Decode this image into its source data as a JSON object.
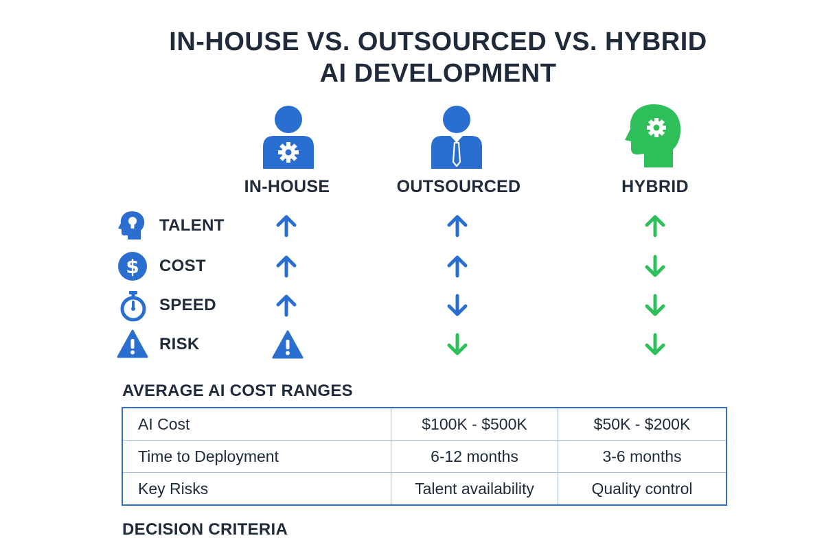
{
  "title": {
    "line1": "IN-HOUSE VS. OUTSOURCED VS. HYBRID",
    "line2": "AI DEVELOPMENT"
  },
  "columns": [
    {
      "label": "IN-HOUSE",
      "icon": "person-gear-icon"
    },
    {
      "label": "OUTSOURCED",
      "icon": "person-tie-icon"
    },
    {
      "label": "HYBRID",
      "icon": "head-gear-icon"
    }
  ],
  "criteria": [
    {
      "label": "TALENT",
      "icon": "head-lightbulb-icon",
      "indicators": [
        "up",
        "up",
        "up"
      ]
    },
    {
      "label": "COST",
      "icon": "dollar-icon",
      "indicators": [
        "up",
        "up",
        "down"
      ]
    },
    {
      "label": "SPEED",
      "icon": "stopwatch-icon",
      "indicators": [
        "up",
        "down",
        "down"
      ]
    },
    {
      "label": "RISK",
      "icon": "warning-icon",
      "indicators": [
        "warning",
        "down",
        "down"
      ]
    }
  ],
  "cost_section": {
    "title": "AVERAGE AI COST RANGES",
    "rows": [
      [
        "AI Cost",
        "$100K - $500K",
        "$50K - $200K"
      ],
      [
        "Time to Deployment",
        "6-12 months",
        "3-6 months"
      ],
      [
        "Key Risks",
        "Talent availability",
        "Quality control"
      ]
    ]
  },
  "footer": {
    "title": "DECISION CRITERIA"
  },
  "colors": {
    "text": "#1f2a3a",
    "blue": "#2a6fd0",
    "green": "#2fbf5a",
    "table_border": "#2f6fc8"
  }
}
